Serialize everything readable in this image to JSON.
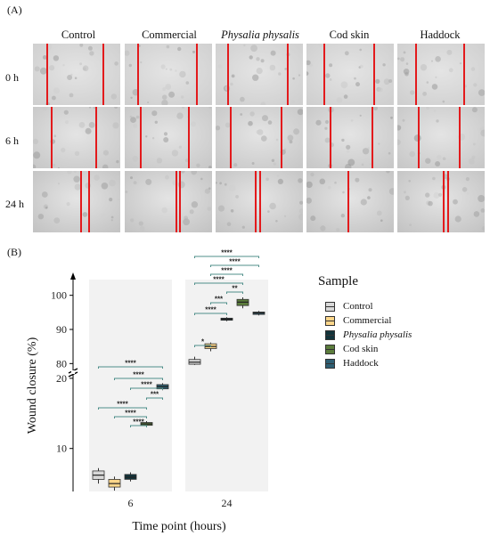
{
  "panel_a": {
    "label": "(A)",
    "columns": [
      "Control",
      "Commercial",
      "Physalia physalis",
      "Cod skin",
      "Haddock"
    ],
    "rows": [
      "0 h",
      "6 h",
      "24 h"
    ],
    "gap_lines_fraction": [
      [
        [
          0.15,
          0.8
        ],
        [
          0.14,
          0.82
        ],
        [
          0.13,
          0.82
        ],
        [
          0.19,
          0.77
        ],
        [
          0.2,
          0.76
        ]
      ],
      [
        [
          0.2,
          0.71
        ],
        [
          0.17,
          0.72
        ],
        [
          0.16,
          0.74
        ],
        [
          0.27,
          0.74
        ],
        [
          0.23,
          0.7
        ]
      ],
      [
        [
          0.54,
          0.63
        ],
        [
          0.58,
          0.62
        ],
        [
          0.45,
          0.5
        ],
        [
          0.47,
          0.47
        ],
        [
          0.52,
          0.57
        ]
      ]
    ],
    "line_color": "#e31a1c"
  },
  "panel_b": {
    "label": "(B)"
  },
  "chart_data": {
    "type": "boxplot",
    "xlabel": "Time point (hours)",
    "ylabel": "Wound closure (%)",
    "categories": [
      "6",
      "24"
    ],
    "lower_ticks": [
      10,
      20
    ],
    "upper_ticks": [
      80,
      90,
      100
    ],
    "lower_range": [
      4,
      21
    ],
    "upper_range": [
      78,
      102
    ],
    "series": [
      {
        "name": "Control",
        "color": "#d9d9d9",
        "stats": [
          [
            5.0,
            5.6,
            6.2,
            6.8,
            7.2
          ],
          [
            79.6,
            79.8,
            80.4,
            81.2,
            82.0
          ]
        ]
      },
      {
        "name": "Commercial",
        "color": "#fdd68a",
        "stats": [
          [
            4.0,
            4.5,
            5.0,
            5.6,
            6.0
          ],
          [
            83.6,
            84.4,
            85.0,
            85.8,
            86.2
          ]
        ]
      },
      {
        "name": "Physalia physalis",
        "color": "#12343b",
        "stats": [
          [
            5.3,
            5.6,
            5.9,
            6.3,
            6.6
          ],
          [
            92.4,
            92.7,
            93.0,
            93.3,
            93.6
          ]
        ]
      },
      {
        "name": "Cod skin",
        "color": "#5c7d3c",
        "stats": [
          [
            13.1,
            13.3,
            13.5,
            13.7,
            13.9
          ],
          [
            96.2,
            97.0,
            98.0,
            98.8,
            99.4
          ]
        ]
      },
      {
        "name": "Haddock",
        "color": "#2e5f73",
        "stats": [
          [
            18.3,
            18.5,
            18.8,
            19.1,
            19.3
          ],
          [
            94.1,
            94.4,
            94.8,
            95.1,
            95.4
          ]
        ]
      }
    ],
    "significance": {
      "6": [
        {
          "from": 0,
          "to": 4,
          "label": "****"
        },
        {
          "from": 1,
          "to": 4,
          "label": "****"
        },
        {
          "from": 2,
          "to": 4,
          "label": "****"
        },
        {
          "from": 3,
          "to": 4,
          "label": "***"
        },
        {
          "from": 0,
          "to": 3,
          "label": "****"
        },
        {
          "from": 1,
          "to": 3,
          "label": "****"
        },
        {
          "from": 2,
          "to": 3,
          "label": "****"
        }
      ],
      "24": [
        {
          "from": 0,
          "to": 4,
          "label": "****"
        },
        {
          "from": 1,
          "to": 4,
          "label": "****"
        },
        {
          "from": 1,
          "to": 3,
          "label": "****"
        },
        {
          "from": 0,
          "to": 3,
          "label": "****"
        },
        {
          "from": 2,
          "to": 3,
          "label": "**"
        },
        {
          "from": 1,
          "to": 2,
          "label": "***"
        },
        {
          "from": 0,
          "to": 2,
          "label": "****"
        },
        {
          "from": 0,
          "to": 1,
          "label": "*"
        }
      ]
    },
    "bracket_color": "#4f8f8a"
  },
  "legend": {
    "title": "Sample",
    "items": [
      {
        "label": "Control",
        "color": "#d9d9d9",
        "italic": false
      },
      {
        "label": "Commercial",
        "color": "#fdd68a",
        "italic": false
      },
      {
        "label": "Physalia physalis",
        "color": "#12343b",
        "italic": true
      },
      {
        "label": "Cod skin",
        "color": "#5c7d3c",
        "italic": false
      },
      {
        "label": "Haddock",
        "color": "#2e5f73",
        "italic": false
      }
    ]
  }
}
